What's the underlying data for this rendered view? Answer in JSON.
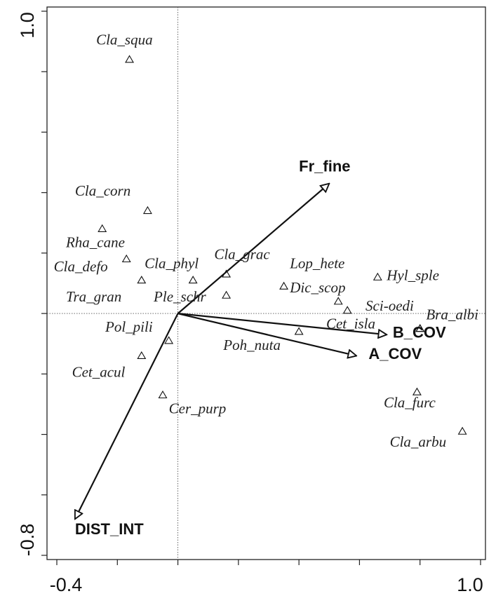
{
  "chart_data": {
    "type": "scatter",
    "subtype": "ordination-triplot",
    "xlim": [
      -0.4,
      1.0
    ],
    "ylim": [
      -0.8,
      1.0
    ],
    "x_tick_labels": [
      "-0.4",
      "1.0"
    ],
    "y_tick_labels": [
      "1.0",
      "-0.8"
    ],
    "x_minor_ticks": [
      -0.4,
      -0.2,
      0.0,
      0.2,
      0.4,
      0.6,
      0.8,
      1.0
    ],
    "y_minor_ticks": [
      1.0,
      0.8,
      0.6,
      0.4,
      0.2,
      0.0,
      -0.2,
      -0.4,
      -0.6,
      -0.8
    ],
    "reference_lines": {
      "x": 0.0,
      "y": 0.0,
      "style": "dotted"
    },
    "grid": false,
    "marker": "open-triangle",
    "species": [
      {
        "name": "Cla_squa",
        "x": -0.16,
        "y": 0.84,
        "label_dx": -0.11,
        "label_dy": 0.05
      },
      {
        "name": "Cla_corn",
        "x": -0.1,
        "y": 0.34,
        "label_dx": -0.24,
        "label_dy": 0.05
      },
      {
        "name": "Rha_cane",
        "x": -0.25,
        "y": 0.28,
        "label_dx": -0.12,
        "label_dy": -0.06
      },
      {
        "name": "Cla_defo",
        "x": -0.17,
        "y": 0.18,
        "label_dx": -0.24,
        "label_dy": -0.04
      },
      {
        "name": "Cla_phyl",
        "x": 0.05,
        "y": 0.11,
        "label_dx": -0.16,
        "label_dy": 0.04
      },
      {
        "name": "Tra_gran",
        "x": -0.12,
        "y": 0.11,
        "label_dx": -0.25,
        "label_dy": -0.07
      },
      {
        "name": "Cla_grac",
        "x": 0.16,
        "y": 0.13,
        "label_dx": -0.04,
        "label_dy": 0.05
      },
      {
        "name": "Ple_schr",
        "x": 0.16,
        "y": 0.06,
        "label_dx": -0.24,
        "label_dy": -0.02
      },
      {
        "name": "Pol_pili",
        "x": -0.03,
        "y": -0.09,
        "label_dx": -0.21,
        "label_dy": 0.03
      },
      {
        "name": "Cet_acul",
        "x": -0.12,
        "y": -0.14,
        "label_dx": -0.23,
        "label_dy": -0.07
      },
      {
        "name": "Cer_purp",
        "x": -0.05,
        "y": -0.27,
        "label_dx": 0.02,
        "label_dy": -0.06
      },
      {
        "name": "Poh_nuta",
        "x": 0.4,
        "y": -0.06,
        "label_dx": -0.25,
        "label_dy": -0.06
      },
      {
        "name": "Lop_hete",
        "x": 0.35,
        "y": 0.09,
        "label_dx": 0.02,
        "label_dy": 0.06
      },
      {
        "name": "Dic_scop",
        "x": 0.53,
        "y": 0.04,
        "label_dx": -0.16,
        "label_dy": 0.03
      },
      {
        "name": "Hyl_sple",
        "x": 0.66,
        "y": 0.12,
        "label_dx": 0.03,
        "label_dy": -0.01
      },
      {
        "name": "Sci-oedi",
        "x": 0.56,
        "y": 0.01,
        "label_dx": 0.06,
        "label_dy": 0.0
      },
      {
        "name": "Cet_isla",
        "x": 0.8,
        "y": -0.05,
        "label_dx": -0.31,
        "label_dy": -0.0
      },
      {
        "name": "Bra_albi",
        "x": 0.8,
        "y": -0.05,
        "label_dx": 0.02,
        "label_dy": 0.03
      },
      {
        "name": "Cla_furc",
        "x": 0.79,
        "y": -0.26,
        "label_dx": -0.11,
        "label_dy": -0.05
      },
      {
        "name": "Cla_arbu",
        "x": 0.94,
        "y": -0.39,
        "label_dx": -0.24,
        "label_dy": -0.05
      }
    ],
    "arrows": [
      {
        "name": "Fr_fine",
        "x": 0.5,
        "y": 0.43,
        "label_dx": -0.1,
        "label_dy": 0.04
      },
      {
        "name": "B_COV",
        "x": 0.69,
        "y": -0.07,
        "label_dx": 0.02,
        "label_dy": -0.01
      },
      {
        "name": "A_COV",
        "x": 0.59,
        "y": -0.14,
        "label_dx": 0.04,
        "label_dy": -0.01
      },
      {
        "name": "DIST_INT",
        "x": -0.34,
        "y": -0.68,
        "label_dx": 0.0,
        "label_dy": -0.05
      }
    ]
  }
}
